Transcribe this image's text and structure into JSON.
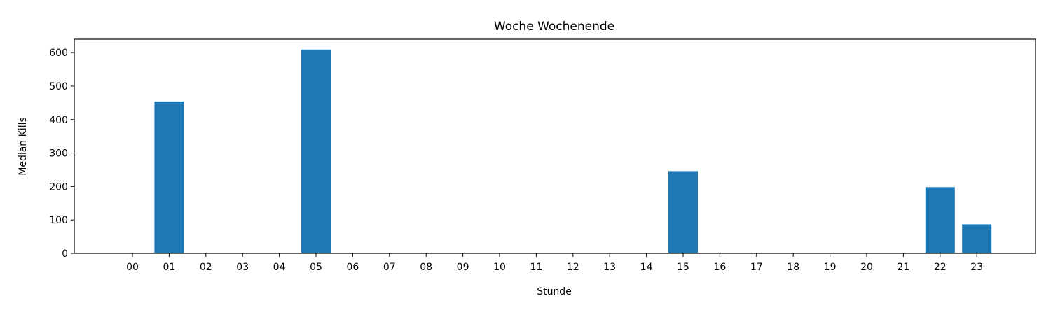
{
  "chart_data": {
    "type": "bar",
    "title": "Woche Wochenende",
    "xlabel": "Stunde",
    "ylabel": "Median Kills",
    "categories": [
      "00",
      "01",
      "02",
      "03",
      "04",
      "05",
      "06",
      "07",
      "08",
      "09",
      "10",
      "11",
      "12",
      "13",
      "14",
      "15",
      "16",
      "17",
      "18",
      "19",
      "20",
      "21",
      "22",
      "23"
    ],
    "values": [
      0,
      454,
      0,
      0,
      0,
      609,
      0,
      0,
      0,
      0,
      0,
      0,
      0,
      0,
      0,
      246,
      0,
      0,
      0,
      0,
      0,
      0,
      198,
      87
    ],
    "ylim": [
      0,
      640
    ],
    "yticks": [
      0,
      100,
      200,
      300,
      400,
      500,
      600
    ],
    "grid": false,
    "bar_color": "#1f77b4"
  }
}
